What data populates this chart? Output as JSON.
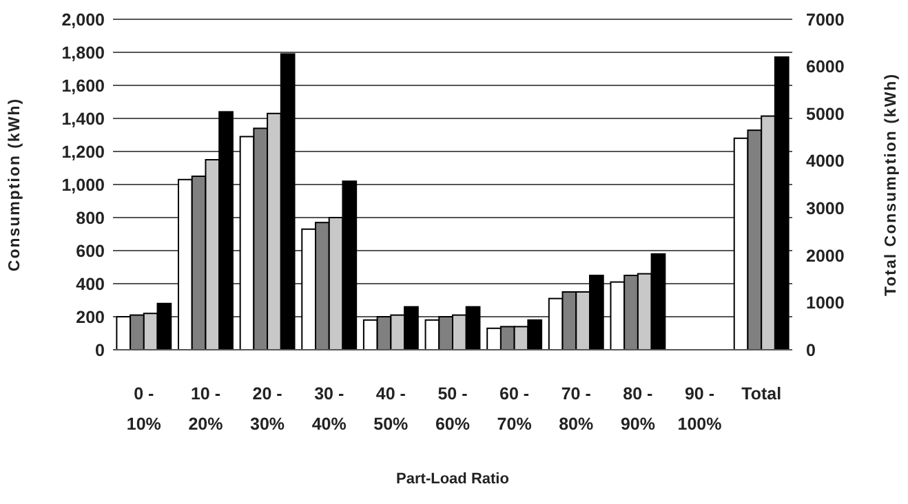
{
  "chart_data": {
    "type": "bar",
    "xlabel": "Part-Load Ratio",
    "ylabel": "Consumption (kWh)",
    "y2label": "Total Consumption (kWh)",
    "categories": [
      "0 - 10%",
      "10 - 20%",
      "20 - 30%",
      "30 - 40%",
      "40 - 50%",
      "50 - 60%",
      "60 - 70%",
      "70 - 80%",
      "80 - 90%",
      "90 - 100%",
      "Total"
    ],
    "series": [
      {
        "color": "#ffffff",
        "values": [
          200,
          1030,
          1290,
          730,
          180,
          180,
          130,
          310,
          410,
          null,
          null
        ]
      },
      {
        "color": "#808080",
        "values": [
          210,
          1050,
          1340,
          770,
          200,
          200,
          140,
          350,
          450,
          null,
          null
        ]
      },
      {
        "color": "#c8c8c8",
        "values": [
          220,
          1150,
          1430,
          800,
          210,
          210,
          140,
          350,
          460,
          null,
          null
        ]
      },
      {
        "color": "#000000",
        "values": [
          280,
          1440,
          1790,
          1020,
          260,
          260,
          180,
          450,
          580,
          null,
          null
        ]
      },
      {
        "color": "#ffffff",
        "axis": "y2",
        "values": [
          null,
          null,
          null,
          null,
          null,
          null,
          null,
          null,
          null,
          null,
          4480
        ]
      },
      {
        "color": "#808080",
        "axis": "y2",
        "values": [
          null,
          null,
          null,
          null,
          null,
          null,
          null,
          null,
          null,
          null,
          4650
        ]
      },
      {
        "color": "#c8c8c8",
        "axis": "y2",
        "values": [
          null,
          null,
          null,
          null,
          null,
          null,
          null,
          null,
          null,
          null,
          4950
        ]
      },
      {
        "color": "#000000",
        "axis": "y2",
        "values": [
          null,
          null,
          null,
          null,
          null,
          null,
          null,
          null,
          null,
          null,
          6200
        ]
      }
    ],
    "ylim": [
      0,
      2000
    ],
    "yticks": [
      0,
      200,
      400,
      600,
      800,
      {
        "value": 1000,
        "label": "1,000"
      },
      {
        "value": 1200,
        "label": "1,200"
      },
      {
        "value": 1400,
        "label": "1,400"
      },
      {
        "value": 1600,
        "label": "1,600"
      },
      {
        "value": 1800,
        "label": "1,800"
      },
      {
        "value": 2000,
        "label": "2,000"
      }
    ],
    "y2lim": [
      0,
      7000
    ],
    "y2ticks": [
      0,
      1000,
      2000,
      3000,
      4000,
      5000,
      6000,
      7000
    ],
    "grid": "y"
  }
}
